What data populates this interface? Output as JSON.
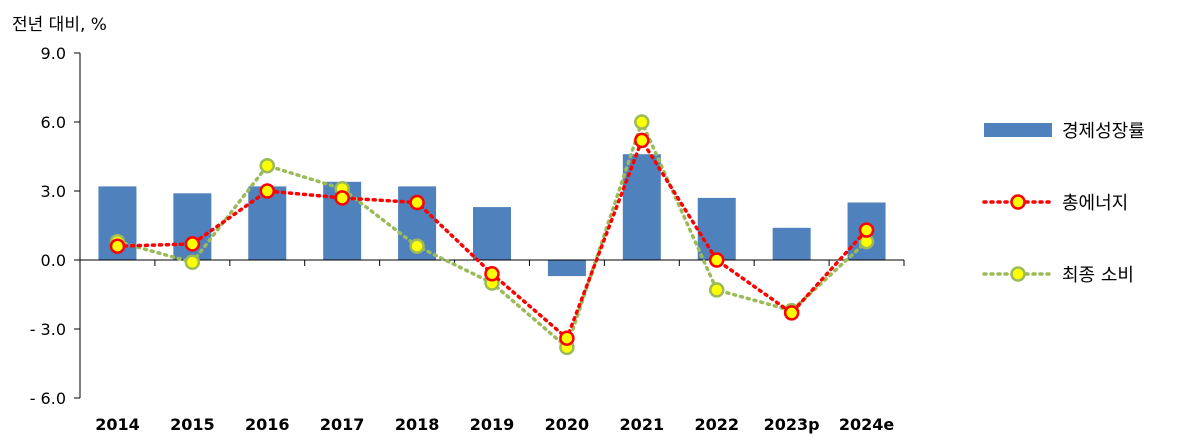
{
  "chart_data": {
    "type": "bar",
    "ylabel": "전년 대비, %",
    "categories": [
      "2014",
      "2015",
      "2016",
      "2017",
      "2018",
      "2019",
      "2020",
      "2021",
      "2022",
      "2023p",
      "2024e"
    ],
    "ylim": [
      -6.0,
      9.0
    ],
    "yticks": [
      "- 6.0",
      "- 3.0",
      "0.0",
      "3.0",
      "6.0",
      "9.0"
    ],
    "ytick_values": [
      -6,
      -3,
      0,
      3,
      6,
      9
    ],
    "grid": false,
    "legend_position": "right",
    "series": [
      {
        "name": "경제성장률",
        "kind": "bar",
        "color": "#4F81BD",
        "values": [
          3.2,
          2.9,
          3.2,
          3.4,
          3.2,
          2.3,
          -0.7,
          4.6,
          2.7,
          1.4,
          2.5
        ]
      },
      {
        "name": "총에너지",
        "kind": "line",
        "color": "#FF0000",
        "marker_fill": "#FFFF00",
        "marker_edge": "#FF0000",
        "values": [
          0.6,
          0.7,
          3.0,
          2.7,
          2.5,
          -0.6,
          -3.4,
          5.2,
          0.0,
          -2.3,
          1.3
        ]
      },
      {
        "name": "최종 소비",
        "kind": "line",
        "color": "#9BBB59",
        "marker_fill": "#FFFF00",
        "marker_edge": "#9BBB59",
        "values": [
          0.8,
          -0.1,
          4.1,
          3.1,
          0.6,
          -1.0,
          -3.8,
          6.0,
          -1.3,
          -2.2,
          0.8
        ]
      }
    ]
  }
}
